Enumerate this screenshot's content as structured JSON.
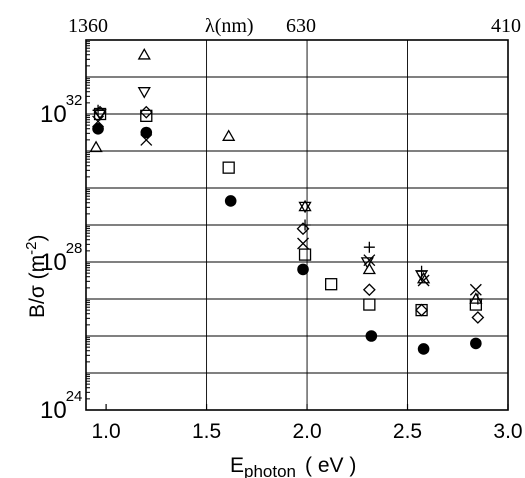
{
  "chart_data": {
    "type": "scatter",
    "title": "",
    "xlabel": "E",
    "xlabel_sub": "photon",
    "xlabel_unit": "( eV )",
    "ylabel": "B/σ  (m",
    "ylabel_sup": "-2",
    "ylabel_close": ")",
    "top_axis_label": "λ(nm)",
    "xlim": [
      0.9,
      3.0
    ],
    "ylog_exponent_range": [
      24,
      34
    ],
    "yscale": "log",
    "grid": true,
    "x_ticks": [
      "1.0",
      "1.5",
      "2.0",
      "2.5",
      "3.0"
    ],
    "y_ticks": [
      {
        "base": "10",
        "exp": "24",
        "value": 24
      },
      {
        "base": "10",
        "exp": "28",
        "value": 28
      },
      {
        "base": "10",
        "exp": "32",
        "value": 32
      }
    ],
    "top_ticks": [
      {
        "label": "1360",
        "energy": 0.91
      },
      {
        "label": "630",
        "energy": 1.97
      },
      {
        "label": "410",
        "energy": 3.02
      }
    ],
    "series": [
      {
        "marker": "filled-circle",
        "points": [
          [
            0.96,
            31.6
          ],
          [
            1.2,
            31.5
          ],
          [
            1.62,
            29.65
          ],
          [
            1.98,
            27.8
          ],
          [
            2.32,
            26.0
          ],
          [
            2.58,
            25.65
          ],
          [
            2.84,
            25.8
          ]
        ]
      },
      {
        "marker": "square",
        "points": [
          [
            0.97,
            32.0
          ],
          [
            1.2,
            31.95
          ],
          [
            1.61,
            30.55
          ],
          [
            1.99,
            28.2
          ],
          [
            2.12,
            27.4
          ],
          [
            2.31,
            26.85
          ],
          [
            2.57,
            26.7
          ],
          [
            2.84,
            26.85
          ]
        ]
      },
      {
        "marker": "triangle-up",
        "points": [
          [
            0.95,
            31.1
          ],
          [
            1.19,
            33.6
          ],
          [
            1.61,
            31.4
          ],
          [
            1.99,
            29.5
          ],
          [
            2.31,
            27.8
          ],
          [
            2.58,
            27.55
          ],
          [
            2.84,
            27.0
          ]
        ]
      },
      {
        "marker": "triangle-down",
        "points": [
          [
            0.97,
            32.0
          ],
          [
            1.19,
            32.6
          ],
          [
            1.99,
            29.5
          ],
          [
            2.3,
            28.0
          ],
          [
            2.57,
            27.65
          ]
        ]
      },
      {
        "marker": "diamond",
        "points": [
          [
            0.97,
            32.05
          ],
          [
            1.2,
            32.05
          ],
          [
            1.98,
            28.9
          ],
          [
            2.31,
            27.25
          ],
          [
            2.57,
            26.7
          ],
          [
            2.85,
            26.5
          ]
        ]
      },
      {
        "marker": "x",
        "points": [
          [
            0.96,
            31.8
          ],
          [
            1.2,
            31.3
          ],
          [
            1.98,
            28.5
          ],
          [
            2.31,
            28.05
          ],
          [
            2.58,
            27.5
          ],
          [
            2.84,
            27.25
          ]
        ]
      },
      {
        "marker": "plus",
        "points": [
          [
            0.96,
            32.1
          ],
          [
            1.99,
            29.0
          ],
          [
            2.31,
            28.4
          ],
          [
            2.57,
            27.75
          ],
          [
            2.85,
            27.0
          ]
        ]
      }
    ]
  }
}
